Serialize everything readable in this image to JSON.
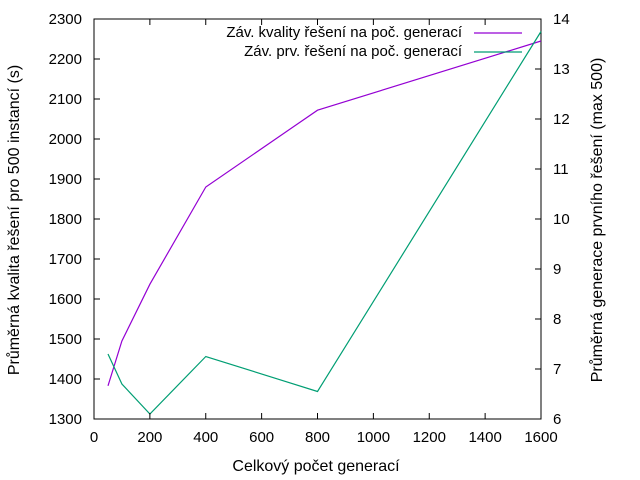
{
  "chart_data": {
    "type": "line",
    "title": "",
    "xlabel": "Celkový počet generací",
    "ylabel_left": "Průměrná kvalita řešení pro 500 instancí (s)",
    "ylabel_right": "Průměrná generace prvního řešení (max 500)",
    "xlim": [
      0,
      1600
    ],
    "ylim_left": [
      1300,
      2300
    ],
    "ylim_right": [
      6,
      14
    ],
    "x_ticks": [
      0,
      200,
      400,
      600,
      800,
      1000,
      1200,
      1400,
      1600
    ],
    "y_left_ticks": [
      1300,
      1400,
      1500,
      1600,
      1700,
      1800,
      1900,
      2000,
      2100,
      2200,
      2300
    ],
    "y_right_ticks": [
      6,
      7,
      8,
      9,
      10,
      11,
      12,
      13,
      14
    ],
    "grid": false,
    "legend_position": "top-right",
    "series": [
      {
        "name": "Záv. kvality řešení na poč. generací",
        "axis": "left",
        "color": "#9400d3",
        "x": [
          50,
          100,
          200,
          400,
          800,
          1600
        ],
        "y": [
          1383,
          1495,
          1637,
          1880,
          2072,
          2245
        ]
      },
      {
        "name": "Záv. prv. řešení na poč. generací",
        "axis": "right",
        "color": "#009e73",
        "x": [
          50,
          100,
          200,
          400,
          800,
          1600
        ],
        "y": [
          7.3,
          6.7,
          6.1,
          7.25,
          6.55,
          13.75
        ]
      }
    ]
  }
}
